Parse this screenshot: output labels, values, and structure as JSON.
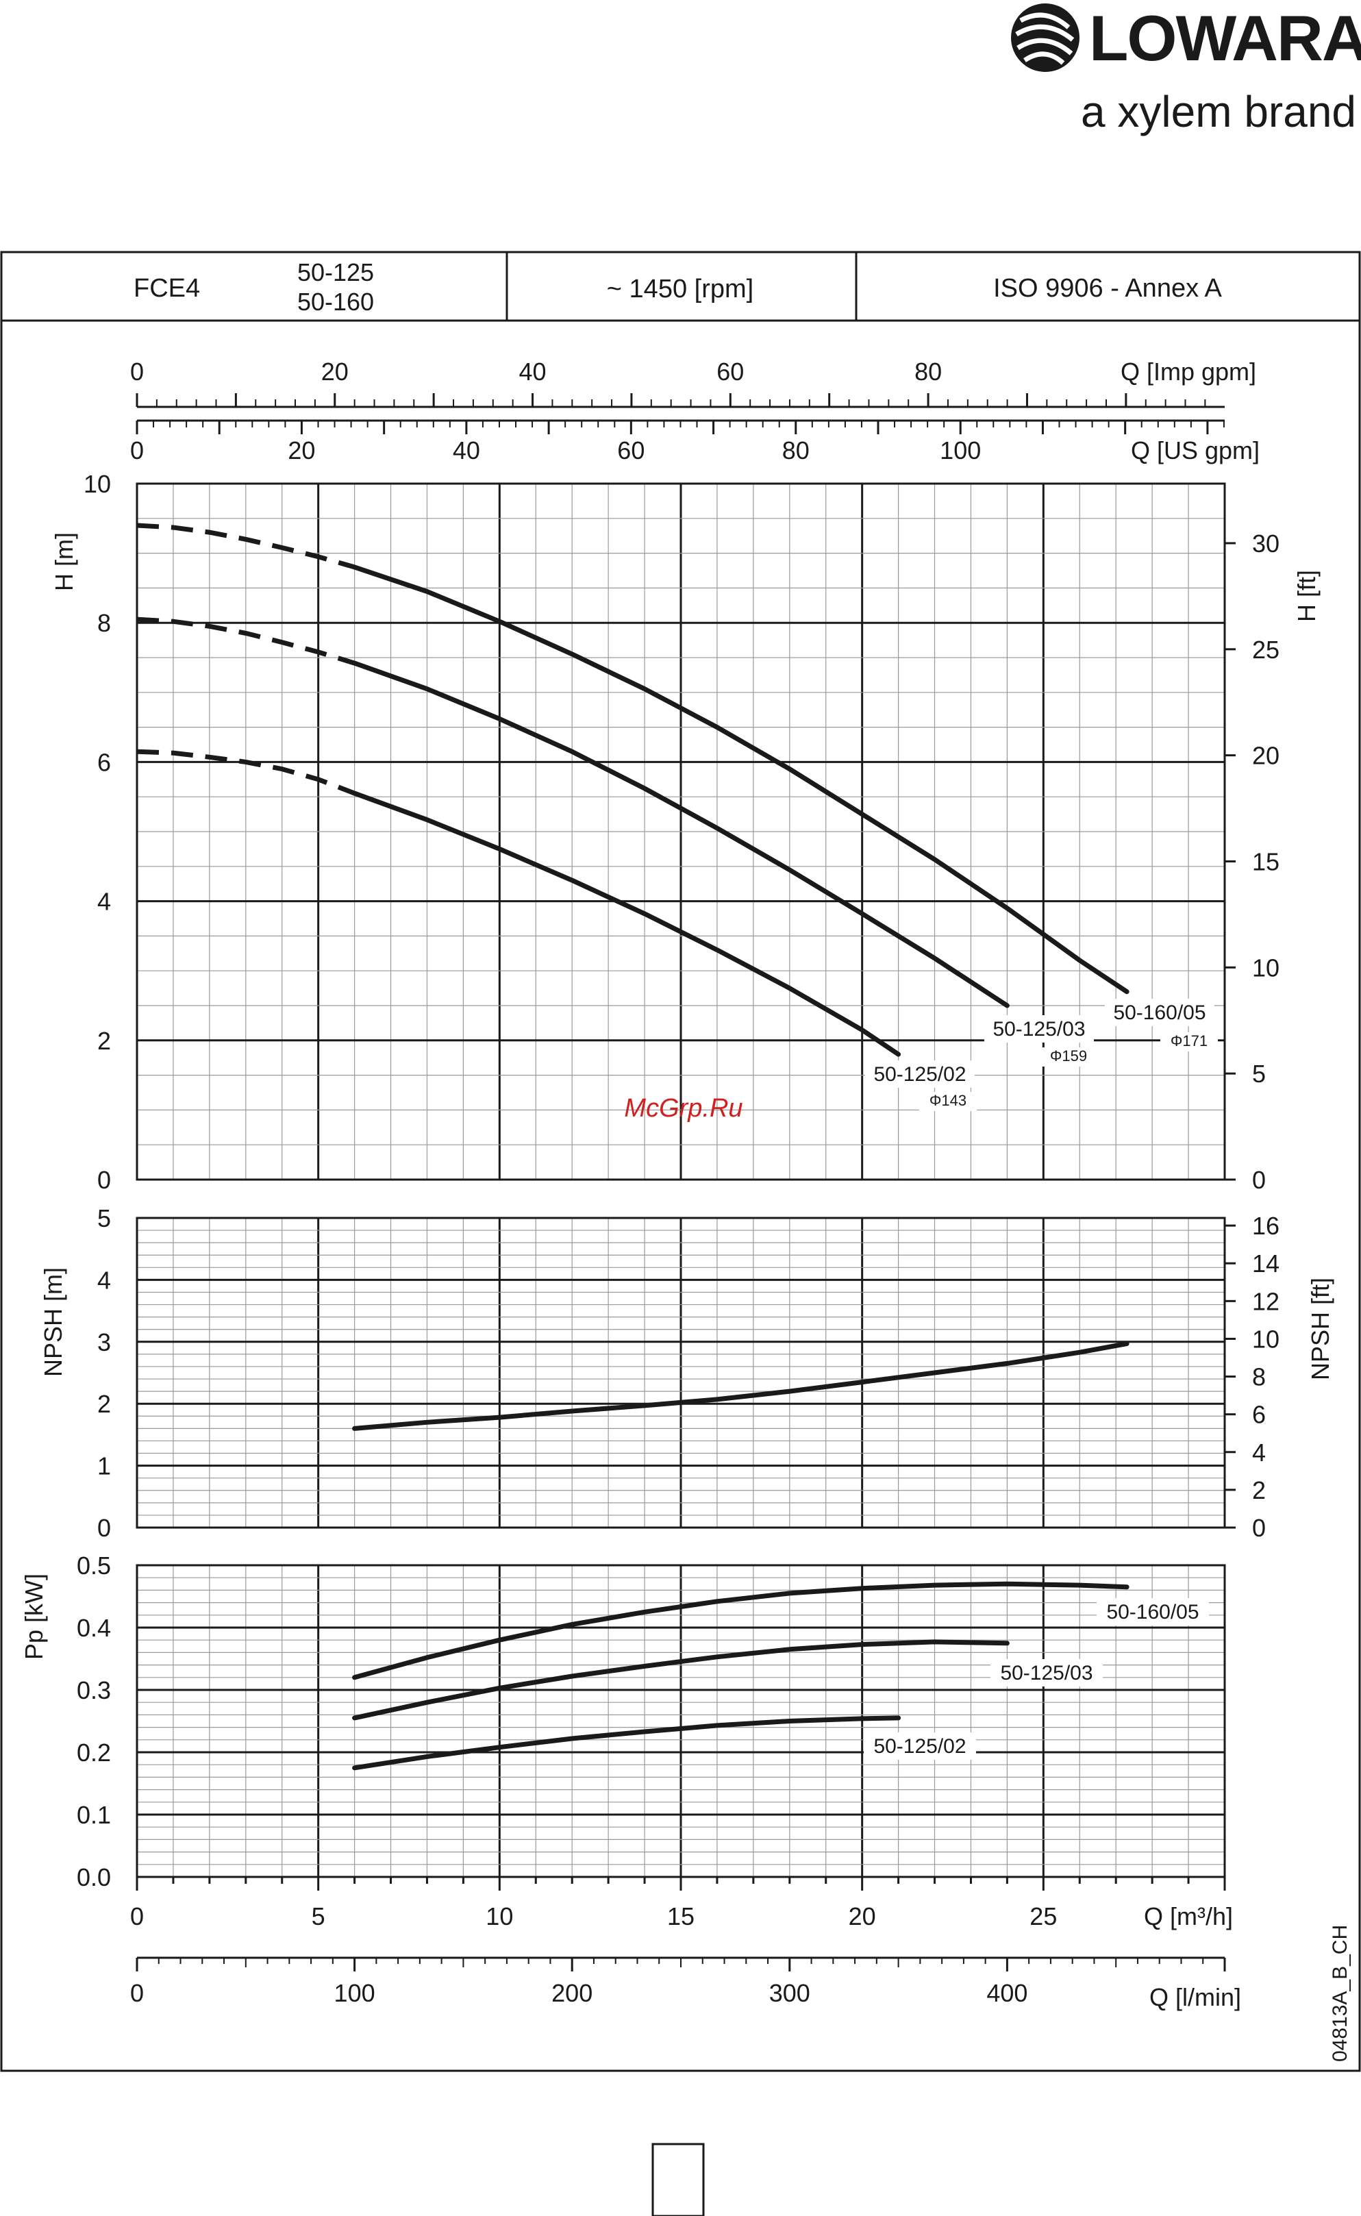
{
  "brand": {
    "name": "LOWARA",
    "tagline": "a xylem brand"
  },
  "header": {
    "model": "FCE4",
    "sizes": [
      "50-125",
      "50-160"
    ],
    "speed": "~ 1450 [rpm]",
    "standard": "ISO 9906 - Annex A"
  },
  "watermark": "McGrp.Ru",
  "doc_code": "04813A_B_CH",
  "colors": {
    "line": "#1a1a1a",
    "watermark": "#d02020",
    "grid_minor": "#9a9a9a"
  },
  "chart_data": [
    {
      "type": "line",
      "panel": "head",
      "xlabel": "Q [m³/h]",
      "ylabel": "H [m]",
      "ylabel_right": "H [ft]",
      "xlim": [
        0,
        30
      ],
      "ylim": [
        0,
        10
      ],
      "y_ticks": [
        "0",
        "2",
        "4",
        "6",
        "8",
        "10"
      ],
      "y_right_ticks": [
        "0",
        "5",
        "10",
        "15",
        "20",
        "25",
        "30"
      ],
      "secondary_x_axes": [
        {
          "label": "Q [Imp gpm]",
          "ticks": [
            "0",
            "20",
            "40",
            "60",
            "80"
          ]
        },
        {
          "label": "Q [US gpm]",
          "ticks": [
            "0",
            "20",
            "40",
            "60",
            "80",
            "100"
          ]
        }
      ],
      "grid": true,
      "series": [
        {
          "name": "50-160/05",
          "impeller": "Φ171",
          "dashed_until_x": 6,
          "x": [
            0,
            1,
            2,
            3,
            4,
            5,
            6,
            8,
            10,
            12,
            14,
            16,
            18,
            20,
            22,
            24,
            26,
            27.3
          ],
          "y": [
            9.4,
            9.37,
            9.3,
            9.2,
            9.08,
            8.95,
            8.8,
            8.45,
            8.02,
            7.55,
            7.05,
            6.5,
            5.9,
            5.25,
            4.6,
            3.9,
            3.15,
            2.7
          ]
        },
        {
          "name": "50-125/03",
          "impeller": "Φ159",
          "dashed_until_x": 6,
          "x": [
            0,
            1,
            2,
            3,
            4,
            5,
            6,
            8,
            10,
            12,
            14,
            16,
            18,
            20,
            22,
            24
          ],
          "y": [
            8.05,
            8.02,
            7.95,
            7.85,
            7.72,
            7.58,
            7.42,
            7.05,
            6.62,
            6.15,
            5.62,
            5.05,
            4.45,
            3.82,
            3.18,
            2.5
          ]
        },
        {
          "name": "50-125/02",
          "impeller": "Φ143",
          "dashed_until_x": 6,
          "x": [
            0,
            1,
            2,
            3,
            4,
            5,
            6,
            8,
            10,
            12,
            14,
            16,
            18,
            20,
            21
          ],
          "y": [
            6.15,
            6.13,
            6.07,
            6.0,
            5.9,
            5.75,
            5.55,
            5.17,
            4.75,
            4.3,
            3.82,
            3.3,
            2.75,
            2.15,
            1.8
          ]
        }
      ]
    },
    {
      "type": "line",
      "panel": "npsh",
      "xlabel": "Q [m³/h]",
      "ylabel": "NPSH [m]",
      "ylabel_right": "NPSH [ft]",
      "xlim": [
        0,
        30
      ],
      "ylim": [
        0,
        5
      ],
      "y_ticks": [
        "0",
        "1",
        "2",
        "3",
        "4",
        "5"
      ],
      "y_right_ticks": [
        "0",
        "2",
        "4",
        "6",
        "8",
        "10",
        "12",
        "14",
        "16"
      ],
      "grid": true,
      "series": [
        {
          "x": [
            6,
            8,
            10,
            12,
            14,
            16,
            18,
            20,
            22,
            24,
            26,
            27.3
          ],
          "y": [
            1.6,
            1.7,
            1.78,
            1.88,
            1.97,
            2.07,
            2.2,
            2.35,
            2.5,
            2.65,
            2.83,
            2.97
          ]
        }
      ]
    },
    {
      "type": "line",
      "panel": "power",
      "xlabel": "Q [m³/h]",
      "ylabel": "Pp [kW]",
      "xlim": [
        0,
        30
      ],
      "ylim": [
        0,
        0.5
      ],
      "y_ticks": [
        "0.0",
        "0.1",
        "0.2",
        "0.3",
        "0.4",
        "0.5"
      ],
      "x_ticks": [
        "0",
        "5",
        "10",
        "15",
        "20",
        "25"
      ],
      "secondary_x_axes": [
        {
          "label": "Q [l/min]",
          "ticks": [
            "0",
            "100",
            "200",
            "300",
            "400"
          ]
        }
      ],
      "grid": true,
      "series": [
        {
          "name": "50-160/05",
          "x": [
            6,
            8,
            10,
            12,
            14,
            16,
            18,
            20,
            22,
            24,
            26,
            27.3
          ],
          "y": [
            0.32,
            0.352,
            0.38,
            0.405,
            0.425,
            0.442,
            0.455,
            0.463,
            0.468,
            0.47,
            0.468,
            0.465
          ]
        },
        {
          "name": "50-125/03",
          "x": [
            6,
            8,
            10,
            12,
            14,
            16,
            18,
            20,
            22,
            24
          ],
          "y": [
            0.255,
            0.28,
            0.303,
            0.322,
            0.338,
            0.353,
            0.365,
            0.373,
            0.377,
            0.375
          ]
        },
        {
          "name": "50-125/02",
          "x": [
            6,
            8,
            10,
            12,
            14,
            16,
            18,
            20,
            21
          ],
          "y": [
            0.175,
            0.193,
            0.208,
            0.222,
            0.233,
            0.243,
            0.25,
            0.254,
            0.255
          ]
        }
      ]
    }
  ]
}
